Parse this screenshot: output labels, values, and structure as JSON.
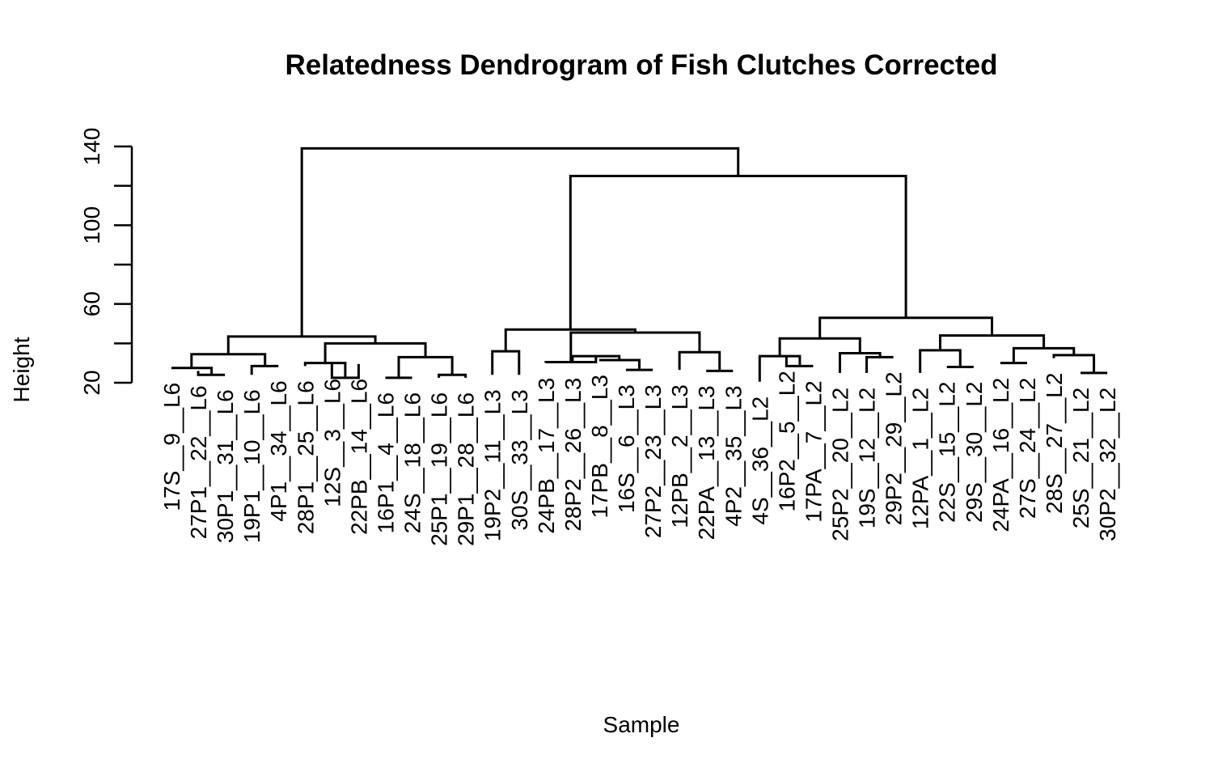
{
  "chart_data": {
    "type": "dendrogram",
    "title": "Relatedness Dendrogram of Fish Clutches Corrected",
    "xlabel": "Sample",
    "ylabel": "Height",
    "ylim": [
      20,
      140
    ],
    "yticks": [
      20,
      40,
      60,
      80,
      100,
      120,
      140
    ],
    "ytick_labels": [
      "20",
      "",
      "60",
      "",
      "100",
      "",
      "140"
    ],
    "leaves": [
      "17S__9__L6",
      "27P1__22__L6",
      "30P1__31__L6",
      "19P1__10__L6",
      "4P1__34__L6",
      "28P1__25__L6",
      "12S__3__L6",
      "22PB__14__L6",
      "16P1__4__L6",
      "24S__18__L6",
      "25P1__19__L6",
      "29P1__28__L6",
      "19P2__11__L3",
      "30S__33__L3",
      "24PB__17__L3",
      "28P2__26__L3",
      "17PB__8__L3",
      "16S__6__L3",
      "27P2__23__L3",
      "12PB__2__L3",
      "22PA__13__L3",
      "4P2__35__L3",
      "4S__36__L2",
      "16P2__5__L2",
      "17PA__7__L2",
      "25P2__20__L2",
      "19S__12__L2",
      "29P2__29__L2",
      "12PA__1__L2",
      "22S__15__L2",
      "29S__30__L2",
      "24PA__16__L2",
      "27S__24__L2",
      "28S__27__L2",
      "25S__21__L2",
      "30P2__32__L2"
    ],
    "leaf_heights": [
      27.5,
      26,
      24,
      24,
      28.5,
      28.5,
      29.5,
      29.5,
      22.5,
      22.5,
      22.5,
      22.5,
      24,
      24,
      30,
      30,
      31.5,
      26.5,
      26.5,
      26.5,
      26,
      26,
      20.5,
      33.5,
      28.5,
      25,
      25,
      33,
      25,
      28,
      28,
      30,
      30,
      32.5,
      25,
      25
    ],
    "merges": [
      {
        "left": 1,
        "right": 2,
        "height": 24
      },
      {
        "left": 0,
        "right": "m1",
        "height": 27.5
      },
      {
        "left": 3,
        "right": 4,
        "height": 28.5
      },
      {
        "left": "m2",
        "right": "m3",
        "height": 34.5
      },
      {
        "left": 6,
        "right": 7,
        "height": 22.5
      },
      {
        "left": 5,
        "right": "m5",
        "height": 30
      },
      {
        "left": 8,
        "right": 9,
        "height": 22.5
      },
      {
        "left": 10,
        "right": 11,
        "height": 24
      },
      {
        "left": "m7",
        "right": "m8",
        "height": 33
      },
      {
        "left": "m6",
        "right": "m9",
        "height": 40
      },
      {
        "left": "m4",
        "right": "m10",
        "height": 43.5
      },
      {
        "left": 12,
        "right": 13,
        "height": 36
      },
      {
        "left": 17,
        "right": 18,
        "height": 26.5
      },
      {
        "left": 16,
        "right": "m13",
        "height": 31.5
      },
      {
        "left": 15,
        "right": "m14",
        "height": 33.5
      },
      {
        "left": 14,
        "right": "m15",
        "height": 30.5
      },
      {
        "left": 20,
        "right": 21,
        "height": 26
      },
      {
        "left": 19,
        "right": "m17",
        "height": 35.5
      },
      {
        "left": "m16",
        "right": "m18",
        "height": 45.5
      },
      {
        "left": "m12",
        "right": "m19",
        "height": 47
      },
      {
        "left": 23,
        "right": 24,
        "height": 28.5
      },
      {
        "left": 22,
        "right": "m21",
        "height": 33.5
      },
      {
        "left": 26,
        "right": 27,
        "height": 33
      },
      {
        "left": 25,
        "right": "m23",
        "height": 35
      },
      {
        "left": "m22",
        "right": "m24",
        "height": 42.5
      },
      {
        "left": 29,
        "right": 30,
        "height": 28
      },
      {
        "left": 28,
        "right": "m26",
        "height": 36.5
      },
      {
        "left": 31,
        "right": 32,
        "height": 30
      },
      {
        "left": 34,
        "right": 35,
        "height": 25
      },
      {
        "left": 33,
        "right": "m29",
        "height": 34
      },
      {
        "left": "m28",
        "right": "m30",
        "height": 37.5
      },
      {
        "left": "m27",
        "right": "m31",
        "height": 44
      },
      {
        "left": "m25",
        "right": "m32",
        "height": 53
      },
      {
        "left": "m20",
        "right": "m33",
        "height": 125
      },
      {
        "left": "m11",
        "right": "m34",
        "height": 139
      }
    ],
    "grid": false,
    "legend": "none"
  }
}
